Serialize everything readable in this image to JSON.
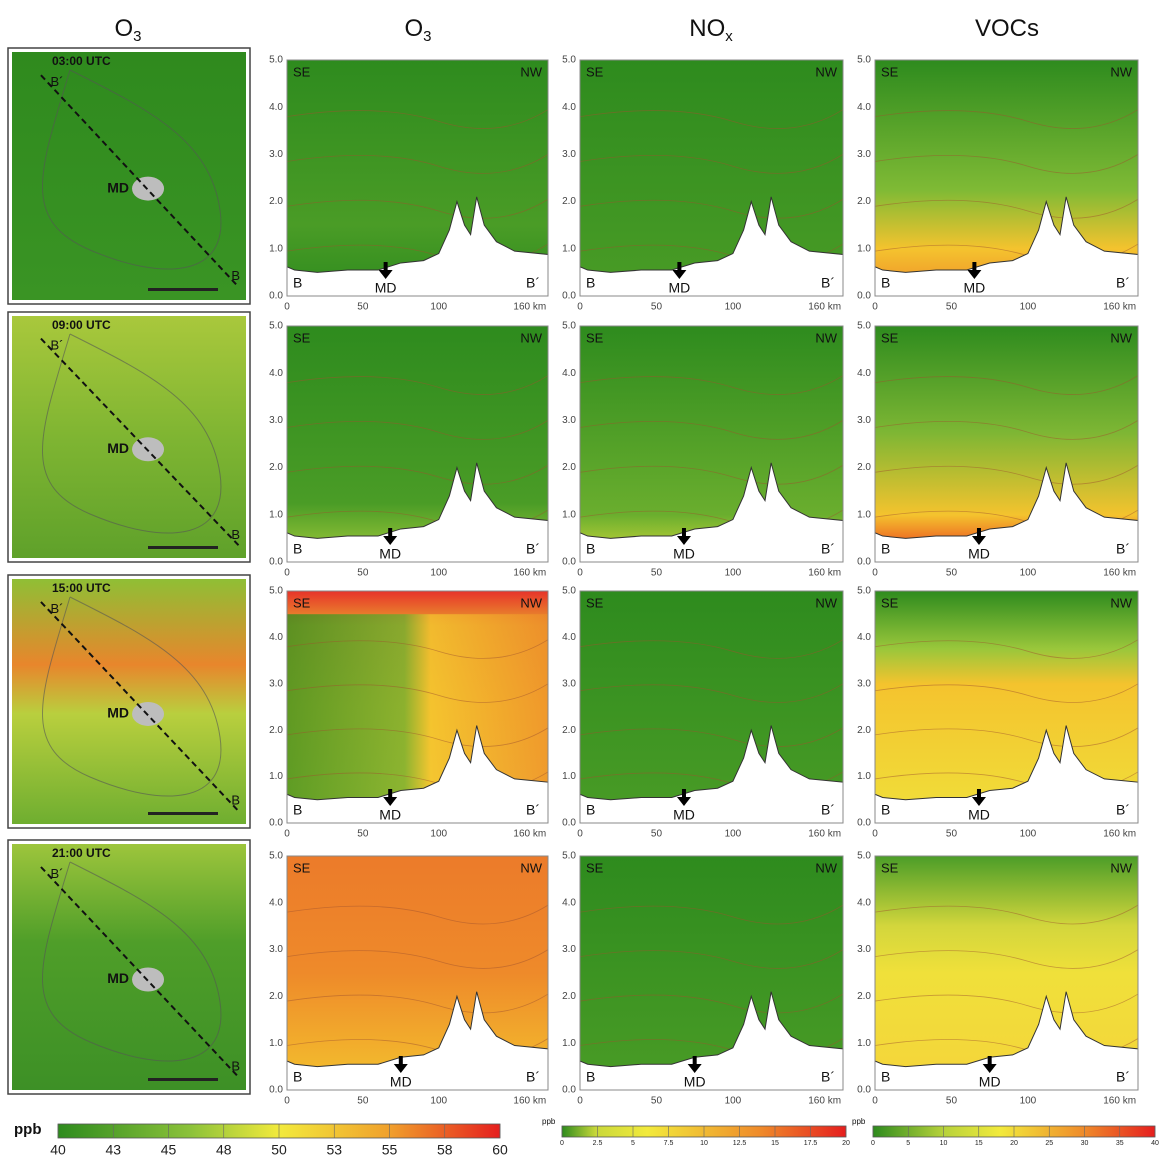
{
  "column_headers": [
    {
      "base": "O",
      "sub": "3"
    },
    {
      "base": "O",
      "sub": "3"
    },
    {
      "base": "NO",
      "sub": "x"
    },
    {
      "base": "VOCs"
    }
  ],
  "maps": [
    {
      "time": "03:00 UTC"
    },
    {
      "time": "09:00 UTC"
    },
    {
      "time": "15:00 UTC"
    },
    {
      "time": "21:00 UTC"
    }
  ],
  "map_labels": {
    "city": "MD",
    "start": "B",
    "end": "B´"
  },
  "cross_section": {
    "yticks": [
      "0.0",
      "1.0",
      "2.0",
      "3.0",
      "4.0",
      "5.0"
    ],
    "xticks": [
      "0",
      "50",
      "100",
      "160 km"
    ],
    "left": "SE",
    "right": "NW",
    "start": "B",
    "end": "B´",
    "site": "MD"
  },
  "colorbars": [
    {
      "unit": "ppb",
      "ticks": [
        "40",
        "43",
        "45",
        "48",
        "50",
        "53",
        "55",
        "58",
        "60"
      ]
    },
    {
      "unit": "ppb",
      "ticks": [
        "0",
        "2.5",
        "5",
        "7.5",
        "10",
        "12.5",
        "15",
        "17.5",
        "20"
      ]
    },
    {
      "unit": "ppb",
      "ticks": [
        "0",
        "5",
        "10",
        "15",
        "20",
        "25",
        "30",
        "35",
        "40"
      ]
    }
  ]
}
